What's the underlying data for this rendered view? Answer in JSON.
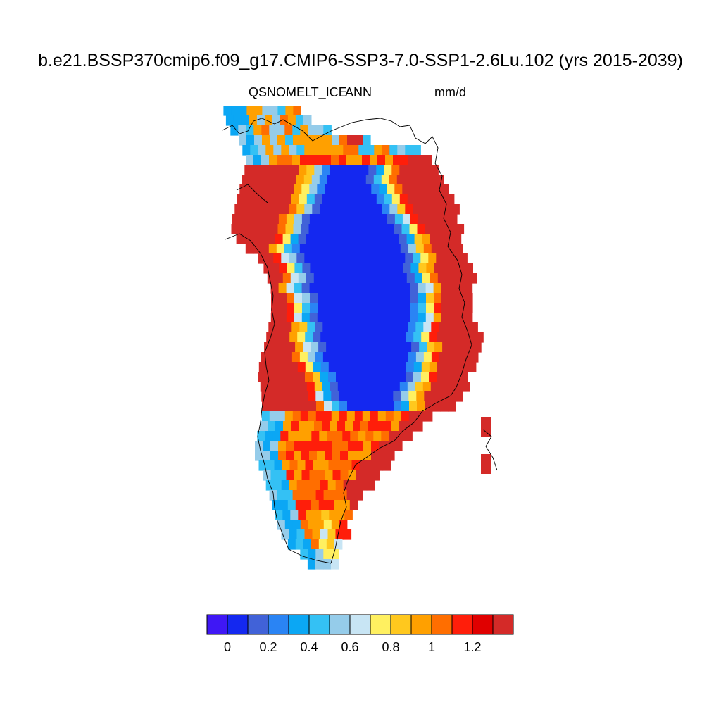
{
  "title": "b.e21.BSSP370cmip6.f09_g17.CMIP6-SSP3-7.0-SSP1-2.6Lu.102 (yrs 2015-2039)",
  "variable": "QSNOMELT_ICE",
  "season": "ANN",
  "units": "mm/d",
  "colorbar": {
    "colors": [
      "#3f17f5",
      "#1428f0",
      "#4162d8",
      "#2a84f4",
      "#0ba7f4",
      "#34c1f4",
      "#95ccea",
      "#c8e5f4",
      "#fff060",
      "#ffc81e",
      "#ffa000",
      "#ff6e00",
      "#ff1e0a",
      "#e00000",
      "#d42a28"
    ],
    "tick_labels": [
      "0",
      "0.2",
      "0.4",
      "0.6",
      "0.8",
      "1",
      "1.2"
    ]
  },
  "chart_data": {
    "type": "heatmap",
    "title": "b.e21.BSSP370cmip6.f09_g17.CMIP6-SSP3-7.0-SSP1-2.6Lu.102 (yrs 2015-2039)",
    "variable": "QSNOMELT_ICE",
    "units": "mm/d",
    "region": "Greenland",
    "period": "ANN",
    "levels": [
      0,
      0.1,
      0.2,
      0.3,
      0.4,
      0.5,
      0.6,
      0.7,
      0.8,
      0.9,
      1.0,
      1.1,
      1.2,
      1.3
    ],
    "pattern": {
      "interior_ice_sheet": "below 0.1",
      "ice_sheet_margin": "0.3-0.8",
      "coastal_ablation_zone": "above 1.2"
    }
  }
}
